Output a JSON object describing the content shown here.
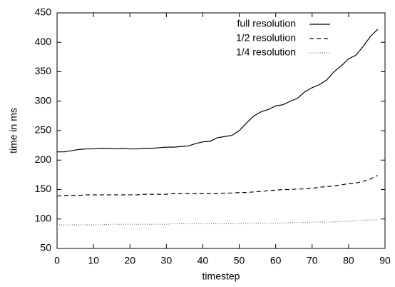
{
  "chart_data": {
    "type": "line",
    "x_label": "timestep",
    "y_label": "time in ms",
    "x": [
      0,
      2,
      4,
      6,
      8,
      10,
      12,
      14,
      16,
      18,
      20,
      22,
      24,
      26,
      28,
      30,
      32,
      34,
      36,
      38,
      40,
      42,
      44,
      46,
      48,
      50,
      52,
      54,
      56,
      58,
      60,
      62,
      64,
      66,
      68,
      70,
      72,
      74,
      76,
      78,
      80,
      82,
      84,
      86,
      88
    ],
    "series": [
      {
        "name": "full resolution",
        "color": "#000000",
        "dash": "solid",
        "values": [
          214,
          214,
          216,
          218,
          219,
          219,
          220,
          220,
          219,
          220,
          219,
          219,
          220,
          220,
          221,
          222,
          222,
          223,
          224,
          228,
          231,
          232,
          238,
          240,
          242,
          250,
          263,
          275,
          282,
          286,
          292,
          294,
          300,
          305,
          316,
          323,
          328,
          336,
          350,
          360,
          372,
          378,
          393,
          410,
          422
        ]
      },
      {
        "name": "1/2 resolution",
        "color": "#000000",
        "dash": "dashed",
        "values": [
          139,
          140,
          140,
          140,
          141,
          141,
          141,
          141,
          141,
          141,
          141,
          141,
          142,
          142,
          142,
          142,
          143,
          143,
          143,
          143,
          143,
          143,
          143,
          144,
          144,
          145,
          145,
          146,
          147,
          148,
          149,
          150,
          150,
          151,
          151,
          152,
          154,
          155,
          156,
          158,
          160,
          161,
          164,
          168,
          174
        ]
      },
      {
        "name": "1/4 resolution",
        "color": "#777777",
        "dash": "dotted",
        "values": [
          90,
          90,
          90,
          90,
          90,
          90,
          90,
          91,
          91,
          91,
          91,
          91,
          91,
          91,
          91,
          91,
          92,
          92,
          92,
          92,
          92,
          92,
          92,
          92,
          92,
          92,
          93,
          93,
          93,
          93,
          93,
          93,
          94,
          94,
          94,
          95,
          95,
          95,
          95,
          96,
          96,
          97,
          98,
          98,
          99
        ]
      }
    ],
    "xlim": [
      0,
      90
    ],
    "xticks": [
      0,
      10,
      20,
      30,
      40,
      50,
      60,
      70,
      80,
      90
    ],
    "ylim": [
      50,
      450
    ],
    "yticks": [
      50,
      100,
      150,
      200,
      250,
      300,
      350,
      400,
      450
    ],
    "legend": "top-right"
  }
}
